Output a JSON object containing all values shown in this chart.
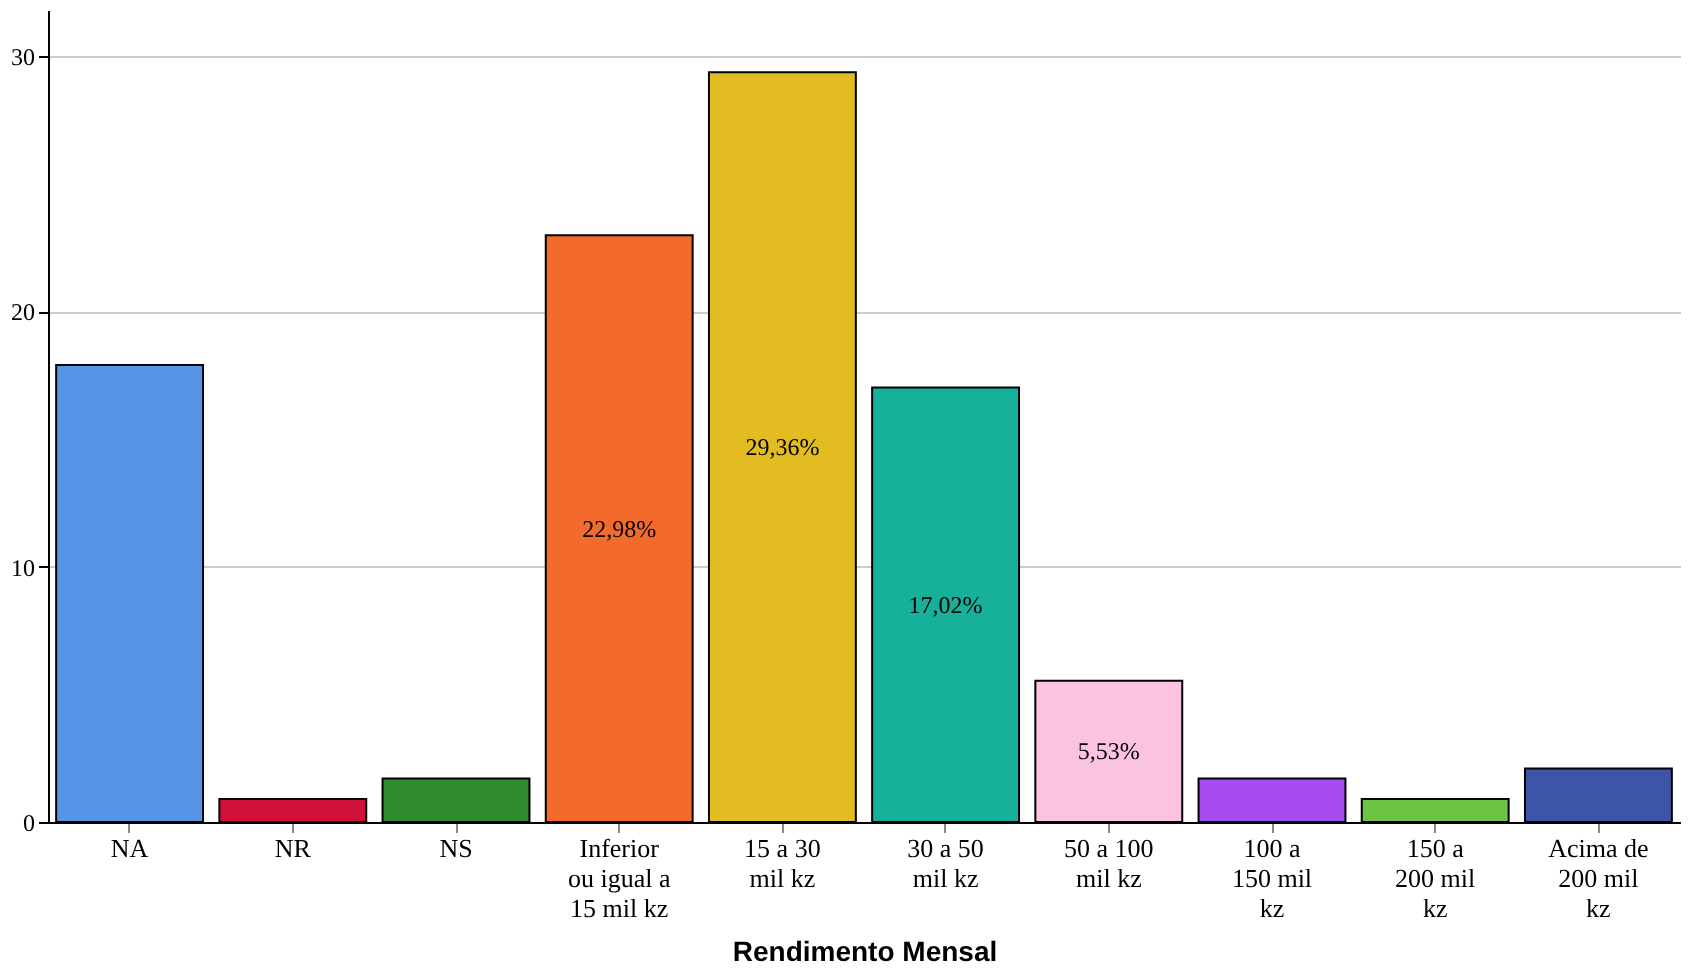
{
  "chart_data": {
    "type": "bar",
    "xlabel": "Rendimento Mensal",
    "categories": [
      "NA",
      "NR",
      "NS",
      "Inferior\nou igual a\n15 mil kz",
      "15 a 30\nmil kz",
      "30 a 50\nmil kz",
      "50 a 100\nmil kz",
      "100 a\n150 mil\nkz",
      "150 a\n200 mil\nkz",
      "Acima de\n200 mil\nkz"
    ],
    "values": [
      17.9,
      0.9,
      1.7,
      22.98,
      29.36,
      17.02,
      5.53,
      1.7,
      0.9,
      2.1
    ],
    "colors": [
      "#5596e6",
      "#d0103a",
      "#2e8b2e",
      "#f26b2d",
      "#e3bc22",
      "#17b19b",
      "#fbc3e0",
      "#a64cf0",
      "#6cc644",
      "#3d55a6"
    ],
    "value_labels": [
      null,
      null,
      null,
      "22,98%",
      "29,36%",
      "17,02%",
      "5,53%",
      null,
      null,
      null
    ],
    "ylim": [
      0,
      31.8
    ],
    "yticks": [
      0,
      10,
      20,
      30
    ],
    "grid": "y"
  }
}
